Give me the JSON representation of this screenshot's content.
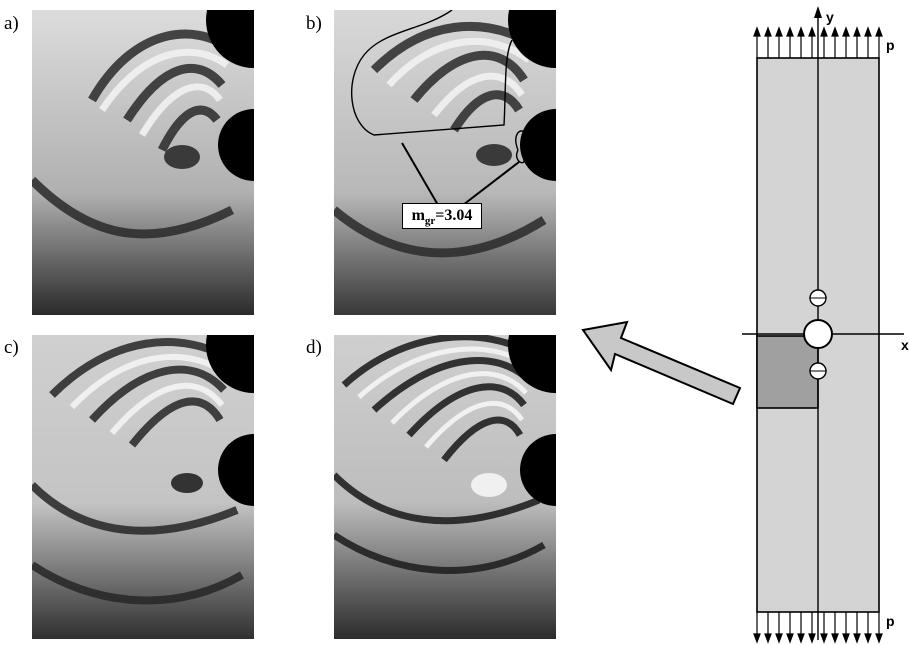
{
  "panels": [
    {
      "label": "a)"
    },
    {
      "label": "b)"
    },
    {
      "label": "c)"
    },
    {
      "label": "d)"
    }
  ],
  "annotation": {
    "m": "m",
    "sub": "gr",
    "value": "=3.04"
  },
  "diagram": {
    "axis_x": "x",
    "axis_y": "y",
    "load_top": "p",
    "load_bottom": "p"
  },
  "colors": {
    "plate": "#d4d4d4",
    "highlight": "#a0a0a0",
    "arrow_fill": "#c8c8c8"
  }
}
